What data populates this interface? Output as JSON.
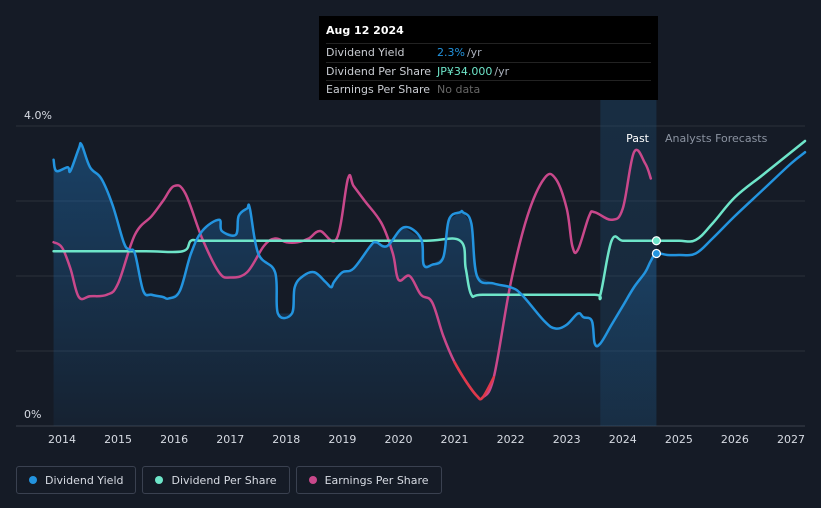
{
  "tooltip": {
    "date": "Aug 12 2024",
    "rows": [
      {
        "label": "Dividend Yield",
        "value": "2.3%",
        "unit": "/yr",
        "color": "#2394df"
      },
      {
        "label": "Dividend Per Share",
        "value": "JP¥34.000",
        "unit": "/yr",
        "color": "#6ee5c9"
      },
      {
        "label": "Earnings Per Share",
        "value": "No data",
        "unit": "",
        "color": "#666666"
      }
    ]
  },
  "legend": [
    {
      "label": "Dividend Yield",
      "color": "#2394df"
    },
    {
      "label": "Dividend Per Share",
      "color": "#6ee5c9"
    },
    {
      "label": "Earnings Per Share",
      "color": "#c9488b"
    }
  ],
  "chart_data": {
    "type": "line",
    "title": "",
    "xlabel": "",
    "ylabel": "",
    "y_tick_labels": [
      "4.0%",
      "0%"
    ],
    "ylim": [
      0,
      4.0
    ],
    "xlim": [
      2013.5,
      2027.3
    ],
    "x_ticks": [
      2014,
      2015,
      2016,
      2017,
      2018,
      2019,
      2020,
      2021,
      2022,
      2023,
      2024,
      2025,
      2026,
      2027
    ],
    "past_label": "Past",
    "forecast_label": "Analysts Forecasts",
    "past_start": 2023.6,
    "past_end": 2024.6,
    "series": [
      {
        "name": "Dividend Yield",
        "color": "#2394df",
        "x": [
          2013.85,
          2013.9,
          2014.1,
          2014.15,
          2014.3,
          2014.35,
          2014.5,
          2014.7,
          2014.9,
          2015.1,
          2015.2,
          2015.3,
          2015.45,
          2015.6,
          2015.8,
          2015.9,
          2016.1,
          2016.3,
          2016.5,
          2016.8,
          2016.85,
          2017.1,
          2017.15,
          2017.3,
          2017.35,
          2017.5,
          2017.8,
          2017.85,
          2018.1,
          2018.15,
          2018.3,
          2018.5,
          2018.7,
          2018.8,
          2018.85,
          2019.0,
          2019.2,
          2019.5,
          2019.6,
          2019.8,
          2020.1,
          2020.4,
          2020.45,
          2020.6,
          2020.8,
          2020.9,
          2021.1,
          2021.15,
          2021.3,
          2021.4,
          2021.7,
          2022.0,
          2022.2,
          2022.6,
          2022.8,
          2023.0,
          2023.2,
          2023.3,
          2023.45,
          2023.5,
          2023.6,
          2023.8,
          2024.0,
          2024.2,
          2024.4,
          2024.5,
          2024.6,
          2024.8,
          2025.0,
          2025.3,
          2025.6,
          2026.0,
          2026.5,
          2027.0,
          2027.25
        ],
        "values": [
          3.55,
          3.4,
          3.45,
          3.4,
          3.7,
          3.75,
          3.45,
          3.3,
          2.95,
          2.45,
          2.35,
          2.3,
          1.8,
          1.75,
          1.72,
          1.7,
          1.8,
          2.3,
          2.6,
          2.75,
          2.6,
          2.55,
          2.8,
          2.9,
          2.9,
          2.3,
          2.05,
          1.5,
          1.5,
          1.85,
          2.0,
          2.05,
          1.92,
          1.85,
          1.92,
          2.05,
          2.1,
          2.4,
          2.45,
          2.4,
          2.65,
          2.5,
          2.15,
          2.15,
          2.25,
          2.75,
          2.85,
          2.85,
          2.7,
          2.0,
          1.9,
          1.85,
          1.75,
          1.4,
          1.3,
          1.35,
          1.5,
          1.45,
          1.4,
          1.1,
          1.1,
          1.35,
          1.6,
          1.85,
          2.05,
          2.2,
          2.3,
          2.28,
          2.28,
          2.3,
          2.5,
          2.8,
          3.15,
          3.5,
          3.65
        ]
      },
      {
        "name": "Dividend Per Share",
        "color": "#6ee5c9",
        "x": [
          2013.85,
          2014.5,
          2015.5,
          2016.15,
          2016.3,
          2016.5,
          2017.5,
          2018.5,
          2019.5,
          2020.5,
          2021.1,
          2021.2,
          2021.3,
          2021.5,
          2022.5,
          2023.5,
          2023.6,
          2023.8,
          2024.0,
          2024.3,
          2024.6,
          2025.0,
          2025.3,
          2025.6,
          2026.0,
          2026.5,
          2027.0,
          2027.25
        ],
        "values": [
          2.33,
          2.33,
          2.33,
          2.33,
          2.47,
          2.47,
          2.47,
          2.47,
          2.47,
          2.47,
          2.47,
          2.1,
          1.75,
          1.75,
          1.75,
          1.75,
          1.75,
          2.47,
          2.47,
          2.47,
          2.47,
          2.47,
          2.48,
          2.7,
          3.05,
          3.35,
          3.65,
          3.8
        ]
      },
      {
        "name": "Earnings Per Share",
        "color": "#c9488b",
        "x": [
          2013.85,
          2014.0,
          2014.15,
          2014.3,
          2014.5,
          2014.8,
          2015.0,
          2015.3,
          2015.6,
          2015.8,
          2016.0,
          2016.2,
          2016.5,
          2016.8,
          2017.0,
          2017.3,
          2017.6,
          2017.8,
          2018.0,
          2018.2,
          2018.4,
          2018.6,
          2018.9,
          2019.1,
          2019.2,
          2019.4,
          2019.7,
          2019.9,
          2020.0,
          2020.2,
          2020.4,
          2020.6,
          2020.8,
          2021.0,
          2021.2,
          2021.4,
          2021.5,
          2021.7,
          2022.0,
          2022.3,
          2022.6,
          2022.8,
          2023.0,
          2023.1,
          2023.2,
          2023.4,
          2023.5,
          2023.8,
          2024.0,
          2024.2,
          2024.4,
          2024.5
        ],
        "values": [
          2.45,
          2.38,
          2.1,
          1.72,
          1.73,
          1.75,
          1.9,
          2.55,
          2.8,
          3.0,
          3.2,
          3.1,
          2.5,
          2.05,
          1.98,
          2.05,
          2.4,
          2.5,
          2.45,
          2.45,
          2.5,
          2.6,
          2.5,
          3.3,
          3.2,
          3.0,
          2.7,
          2.3,
          1.95,
          2.0,
          1.75,
          1.65,
          1.2,
          0.85,
          0.6,
          0.4,
          0.38,
          0.65,
          1.9,
          2.8,
          3.3,
          3.3,
          2.9,
          2.4,
          2.35,
          2.8,
          2.85,
          2.75,
          2.9,
          3.65,
          3.5,
          3.3
        ]
      }
    ],
    "highlight_points": [
      {
        "series": "Dividend Per Share",
        "x": 2024.6,
        "y": 2.47
      },
      {
        "series": "Dividend Yield",
        "x": 2024.6,
        "y": 2.3
      }
    ]
  }
}
